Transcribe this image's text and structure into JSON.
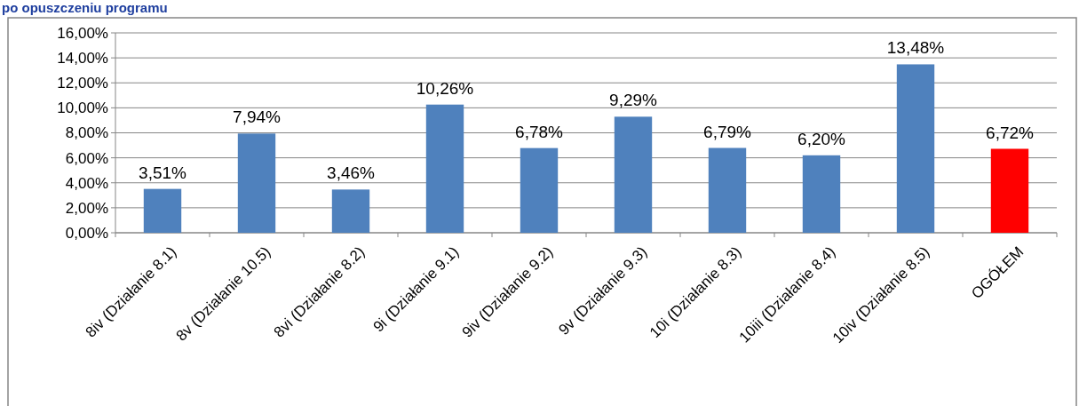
{
  "chart_data": {
    "type": "bar",
    "title": "po opuszczeniu programu",
    "categories": [
      "8iv (Działanie 8.1)",
      "8v (Działanie 10.5)",
      "8vi (Działanie 8.2)",
      "9i (Działanie 9.1)",
      "9iv (Działanie 9.2)",
      "9v (Działanie 9.3)",
      "10i (Działanie 8.3)",
      "10iii (Działanie 8.4)",
      "10iv (Działanie 8.5)",
      "OGÓŁEM"
    ],
    "values": [
      3.51,
      7.94,
      3.46,
      10.26,
      6.78,
      9.29,
      6.79,
      6.2,
      13.48,
      6.72
    ],
    "value_labels": [
      "3,51%",
      "7,94%",
      "3,46%",
      "10,26%",
      "6,78%",
      "9,29%",
      "6,79%",
      "6,20%",
      "13,48%",
      "6,72%"
    ],
    "colors": [
      "#4f81bd",
      "#4f81bd",
      "#4f81bd",
      "#4f81bd",
      "#4f81bd",
      "#4f81bd",
      "#4f81bd",
      "#4f81bd",
      "#4f81bd",
      "#ff0000"
    ],
    "ylim": [
      0,
      16
    ],
    "yticks": [
      {
        "value": 0,
        "label": "0,00%"
      },
      {
        "value": 2,
        "label": "2,00%"
      },
      {
        "value": 4,
        "label": "4,00%"
      },
      {
        "value": 6,
        "label": "6,00%"
      },
      {
        "value": 8,
        "label": "8,00%"
      },
      {
        "value": 10,
        "label": "10,00%"
      },
      {
        "value": 12,
        "label": "12,00%"
      },
      {
        "value": 14,
        "label": "14,00%"
      },
      {
        "value": 16,
        "label": "16,00%"
      }
    ],
    "grid": "y"
  }
}
